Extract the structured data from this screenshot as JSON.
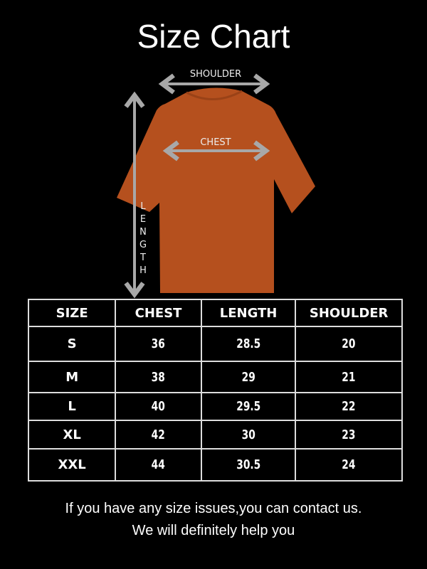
{
  "title": "Size Chart",
  "diagram": {
    "shoulder_label": "SHOULDER",
    "chest_label": "CHEST",
    "length_letters": [
      "L",
      "E",
      "N",
      "G",
      "T",
      "H"
    ],
    "shirt_color": "#b5501e",
    "arrow_color": "#a8a8a8"
  },
  "table": {
    "headers": [
      "SIZE",
      "CHEST",
      "LENGTH",
      "SHOULDER"
    ],
    "rows": [
      [
        "S",
        "36",
        "28.5",
        "20"
      ],
      [
        "M",
        "38",
        "29",
        "21"
      ],
      [
        "L",
        "40",
        "29.5",
        "22"
      ],
      [
        "XL",
        "42",
        "30",
        "23"
      ],
      [
        "XXL",
        "44",
        "30.5",
        "24"
      ]
    ]
  },
  "footer": {
    "line1": "If you have any size issues,you can contact us.",
    "line2": "We will definitely help you"
  }
}
